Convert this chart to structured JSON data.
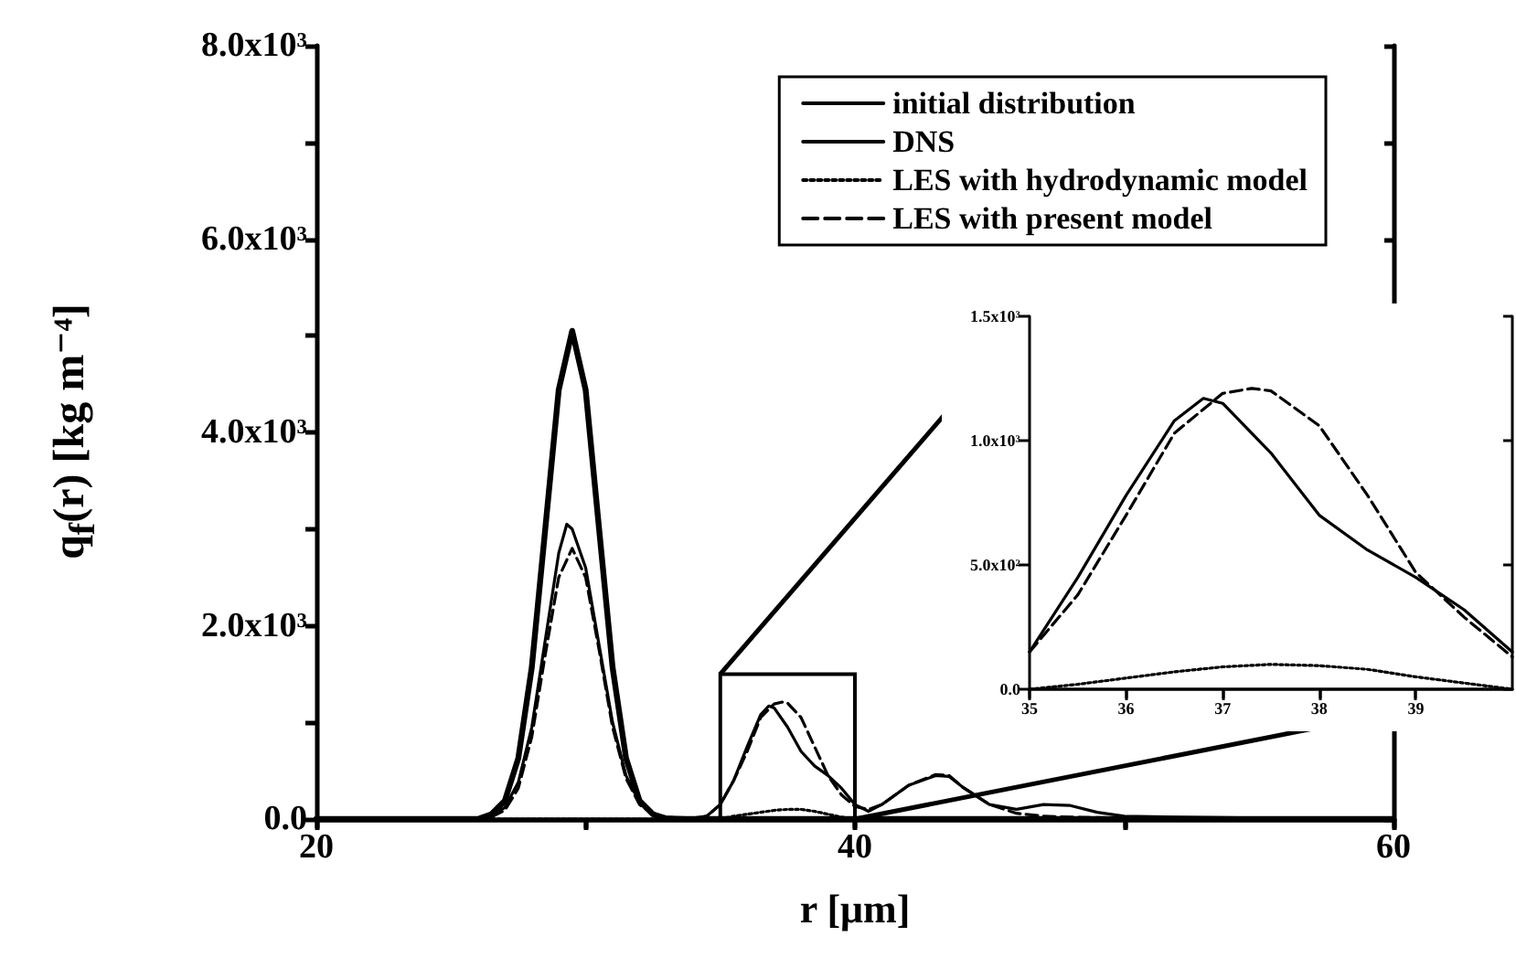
{
  "chart_data": [
    {
      "type": "line",
      "xlabel": "r [μm]",
      "ylabel": "q$_{f}$(r) [kg m⁻⁴]",
      "xlim": [
        20,
        60
      ],
      "xticks": [
        20,
        {
          "value": 30,
          "label": null
        },
        40,
        {
          "value": 50,
          "label": null
        },
        60
      ],
      "ylim": [
        0,
        8000
      ],
      "yticks": [
        {
          "value": 0,
          "label": "0.0"
        },
        {
          "value": 1000,
          "label": null
        },
        {
          "value": 2000,
          "label": "2.0x10³"
        },
        {
          "value": 3000,
          "label": null
        },
        {
          "value": 4000,
          "label": "4.0x10³"
        },
        {
          "value": 5000,
          "label": null
        },
        {
          "value": 6000,
          "label": "6.0x10³"
        },
        {
          "value": 7000,
          "label": null
        },
        {
          "value": 8000,
          "label": "8.0x10³"
        }
      ],
      "grid": false,
      "legend": "top right",
      "marker": "none",
      "series": [
        {
          "name": "initial distribution",
          "color": "#000000",
          "line_style": "solid",
          "x": [
            20,
            25,
            26,
            26.5,
            27,
            27.5,
            28,
            28.5,
            29,
            29.5,
            30,
            30.5,
            31,
            31.5,
            32,
            32.5,
            33,
            34,
            60
          ],
          "values": [
            0,
            0,
            0,
            50,
            190,
            630,
            1570,
            3000,
            4440,
            5050,
            4440,
            3000,
            1570,
            630,
            190,
            50,
            0,
            0,
            0
          ]
        },
        {
          "name": "DNS",
          "color": "#000000",
          "line_style": "solid",
          "x": [
            20,
            25,
            26,
            26.5,
            27,
            27.5,
            28,
            28.5,
            29,
            29.3,
            29.5,
            30,
            30.5,
            31,
            31.5,
            32,
            32.5,
            33,
            34,
            34.5,
            35,
            35.5,
            36,
            36.5,
            36.8,
            37,
            37.5,
            38,
            38.5,
            39,
            39.5,
            40,
            40.5,
            41,
            42,
            43,
            43.5,
            44,
            45,
            46,
            47,
            48,
            49,
            50,
            52,
            55,
            60
          ],
          "values": [
            0,
            0,
            0,
            30,
            120,
            380,
            950,
            1850,
            2750,
            3050,
            3000,
            2600,
            1800,
            1000,
            450,
            170,
            60,
            20,
            10,
            30,
            150,
            400,
            750,
            1080,
            1170,
            1150,
            950,
            700,
            550,
            450,
            320,
            150,
            80,
            150,
            350,
            450,
            440,
            330,
            150,
            100,
            150,
            140,
            70,
            30,
            20,
            10,
            0
          ]
        },
        {
          "name": "LES with hydrodynamic model",
          "color": "#000000",
          "line_style": "dotted",
          "x": [
            20,
            35,
            35.5,
            36,
            36.5,
            37,
            37.5,
            38,
            38.5,
            39,
            39.5,
            40,
            60
          ],
          "values": [
            0,
            0,
            30,
            50,
            70,
            90,
            100,
            100,
            80,
            50,
            20,
            0,
            0
          ]
        },
        {
          "name": "LES with present model",
          "color": "#000000",
          "line_style": "dashed",
          "x": [
            20,
            25,
            26,
            26.5,
            27,
            27.5,
            28,
            28.5,
            29,
            29.5,
            30,
            30.5,
            31,
            31.5,
            32,
            32.5,
            33,
            34,
            34.5,
            35,
            35.5,
            36,
            36.5,
            37,
            37.3,
            37.5,
            38,
            38.5,
            39,
            39.5,
            40,
            40.5,
            41,
            42,
            43,
            43.5,
            44,
            45,
            46,
            47,
            48,
            50,
            55,
            60
          ],
          "values": [
            0,
            0,
            0,
            20,
            90,
            320,
            850,
            1700,
            2500,
            2800,
            2500,
            1750,
            950,
            420,
            150,
            50,
            20,
            0,
            30,
            150,
            400,
            700,
            1050,
            1190,
            1210,
            1200,
            1050,
            750,
            450,
            250,
            130,
            100,
            150,
            350,
            460,
            450,
            330,
            150,
            60,
            30,
            20,
            10,
            0,
            0
          ]
        }
      ]
    },
    {
      "type": "line",
      "xlim": [
        35,
        40
      ],
      "xticks": [
        35,
        36,
        37,
        38,
        39
      ],
      "ylim": [
        0,
        1500
      ],
      "yticks": [
        {
          "value": 0,
          "label": "0.0"
        },
        {
          "value": 500,
          "label": "5.0x10²"
        },
        {
          "value": 1000,
          "label": "1.0x10³"
        },
        {
          "value": 1500,
          "label": "1.5x10³"
        }
      ],
      "grid": false,
      "legend": false,
      "marker": "none",
      "series": [
        {
          "color": "#000000",
          "line_style": "solid",
          "x": [
            35,
            35.5,
            36,
            36.5,
            36.8,
            37,
            37.5,
            38,
            38.5,
            39,
            39.5,
            40
          ],
          "values": [
            150,
            450,
            780,
            1080,
            1170,
            1150,
            950,
            700,
            560,
            450,
            320,
            150
          ]
        },
        {
          "color": "#000000",
          "line_style": "dotted",
          "x": [
            35,
            35.5,
            36,
            36.5,
            37,
            37.5,
            38,
            38.5,
            39,
            39.5,
            40
          ],
          "values": [
            0,
            20,
            45,
            70,
            90,
            100,
            95,
            80,
            50,
            25,
            0
          ]
        },
        {
          "color": "#000000",
          "line_style": "dashed",
          "x": [
            35,
            35.5,
            36,
            36.5,
            37,
            37.3,
            37.5,
            38,
            38.5,
            39,
            39.5,
            40
          ],
          "values": [
            150,
            380,
            700,
            1030,
            1190,
            1210,
            1200,
            1060,
            780,
            470,
            290,
            130
          ]
        }
      ]
    }
  ]
}
